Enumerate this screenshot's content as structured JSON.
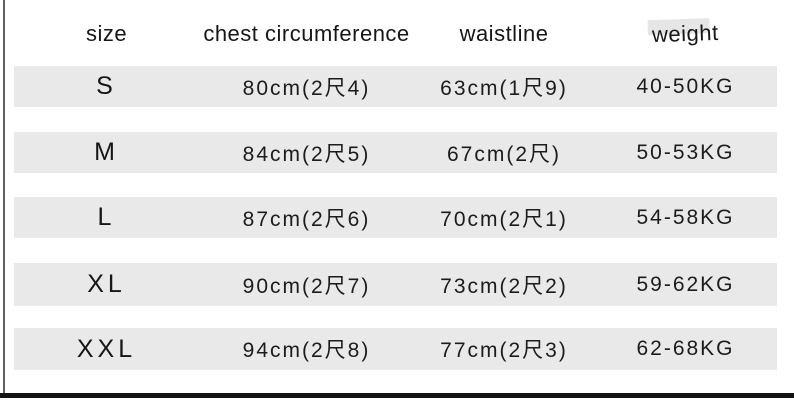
{
  "chart_data": {
    "type": "table",
    "title": "garment size chart",
    "columns": [
      "size",
      "chest circumference",
      "waistline",
      "weight"
    ],
    "rows": [
      [
        "S",
        "80cm(2尺4)",
        "63cm(1尺9)",
        "40-50KG"
      ],
      [
        "M",
        "84cm(2尺5)",
        "67cm(2尺)",
        "50-53KG"
      ],
      [
        "L",
        "87cm(2尺6)",
        "70cm(2尺1)",
        "54-58KG"
      ],
      [
        "XL",
        "90cm(2尺7)",
        "73cm(2尺2)",
        "59-62KG"
      ],
      [
        "XXL",
        "94cm(2尺8)",
        "77cm(2尺3)",
        "62-68KG"
      ]
    ],
    "layout": {
      "row_band_style": "alternating gray bands with white gaps",
      "grid": false,
      "legend": "none"
    }
  },
  "colors": {
    "background": "#ffffff",
    "row_band": "#e9e9e9",
    "text": "#1c1c1c",
    "left_border": "#606060",
    "bottom_bar": "#141414"
  }
}
